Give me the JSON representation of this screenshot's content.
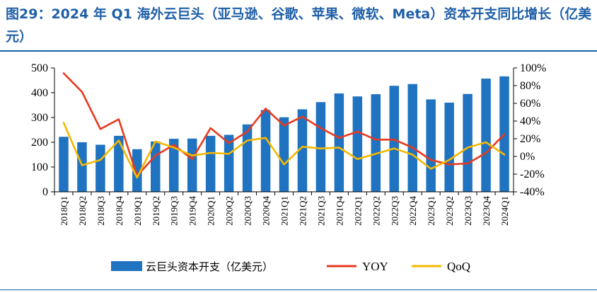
{
  "header": {
    "title": "图29：2024 年 Q1 海外云巨头（亚马逊、谷歌、苹果、微软、Meta）资本开支同比增长（亿美元）"
  },
  "chart_data": {
    "type": "bar",
    "categories": [
      "2018Q1",
      "2018Q2",
      "2018Q3",
      "2018Q4",
      "2019Q1",
      "2019Q2",
      "2019Q3",
      "2019Q4",
      "2020Q1",
      "2020Q2",
      "2020Q3",
      "2020Q4",
      "2021Q1",
      "2021Q2",
      "2021Q3",
      "2021Q4",
      "2022Q1",
      "2022Q2",
      "2022Q3",
      "2022Q4",
      "2023Q1",
      "2023Q2",
      "2023Q3",
      "2023Q4",
      "2024Q1"
    ],
    "series": [
      {
        "name": "云巨头资本开支（亿美元）",
        "type": "bar",
        "axis": "left",
        "values": [
          222,
          200,
          190,
          226,
          172,
          203,
          214,
          215,
          226,
          230,
          272,
          330,
          301,
          333,
          362,
          397,
          385,
          394,
          428,
          435,
          373,
          360,
          395,
          457,
          466
        ]
      },
      {
        "name": "YOY",
        "type": "line",
        "axis": "right",
        "values": [
          94,
          73,
          31,
          42,
          -22,
          1,
          13,
          -3,
          32,
          15,
          28,
          54,
          35,
          45,
          32,
          21,
          28,
          19,
          19,
          10,
          -4,
          -9,
          -8,
          4,
          25
        ]
      },
      {
        "name": "QoQ",
        "type": "line",
        "axis": "right",
        "values": [
          38,
          -10,
          -4,
          18,
          -24,
          17,
          10,
          1,
          4,
          3,
          18,
          21,
          -9,
          11,
          9,
          10,
          -3,
          3,
          9,
          2,
          -14,
          -4,
          10,
          16,
          2
        ]
      }
    ],
    "yleft": {
      "ylim": [
        0,
        500
      ],
      "ticks": [
        "0",
        "100",
        "200",
        "300",
        "400",
        "500"
      ]
    },
    "yright": {
      "ylim": [
        -40,
        100
      ],
      "ticks": [
        "-40%",
        "-20%",
        "0%",
        "20%",
        "40%",
        "60%",
        "80%",
        "100%"
      ]
    },
    "grid": false,
    "legend_position": "bottom",
    "colors": {
      "bar": "#1f73c0",
      "yoy": "#e8391f",
      "qoq": "#f5b800"
    }
  }
}
